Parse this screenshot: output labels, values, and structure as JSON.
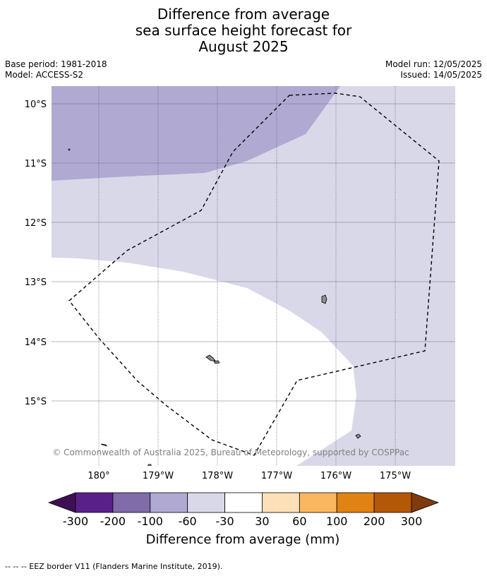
{
  "title": {
    "line1": "Difference from average",
    "line2": "sea surface height forecast for",
    "line3": "August 2025"
  },
  "meta": {
    "base_period": "Base period: 1981-2018",
    "model": "Model: ACCESS-S2",
    "model_run": "Model run: 12/05/2025",
    "issued": "Issued: 14/05/2025"
  },
  "map": {
    "lon_labels": [
      "180°",
      "179°W",
      "178°W",
      "177°W",
      "176°W",
      "175°W"
    ],
    "lat_labels": [
      "10°S",
      "11°S",
      "12°S",
      "13°S",
      "14°S",
      "15°S"
    ],
    "copyright": "© Commonwealth of Australia 2025, Bureau of Meteorology, supported by COSPPac"
  },
  "legend": {
    "ticks": [
      "-300",
      "-200",
      "-100",
      "-60",
      "-30",
      "30",
      "60",
      "100",
      "200",
      "300"
    ],
    "label": "Difference from average (mm)",
    "colors": {
      "below_min": "#3f0f55",
      "bins": [
        "#59208a",
        "#7f6ca8",
        "#b0a9d2",
        "#d8d8e9",
        "#ffffff",
        "#fde0b7",
        "#fbb75f",
        "#e08214",
        "#b35806"
      ],
      "above_max": "#7f3a0e"
    }
  },
  "footer": {
    "eez_note": "--  --  -- EEZ border V11 (Flanders Marine Institute, 2019)."
  }
}
